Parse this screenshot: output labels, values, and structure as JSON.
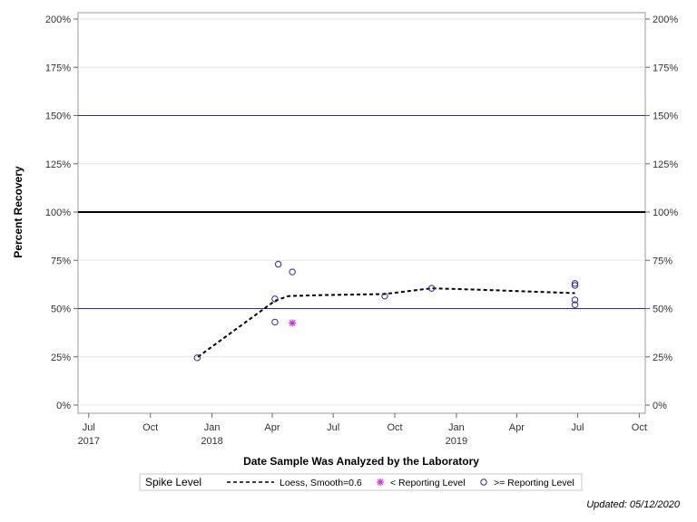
{
  "chart_data": {
    "type": "scatter",
    "xlabel": "Date Sample Was Analyzed by the Laboratory",
    "ylabel": "Percent Recovery",
    "xlim": [
      "2017-06-15",
      "2019-10-10"
    ],
    "ylim": [
      0,
      200
    ],
    "grid": true,
    "y_ticks": [
      0,
      25,
      50,
      75,
      100,
      125,
      150,
      175,
      200
    ],
    "y_tick_labels": [
      "0%",
      "25%",
      "50%",
      "75%",
      "100%",
      "125%",
      "150%",
      "175%",
      "200%"
    ],
    "x_ticks": [
      {
        "date": "2017-07-01",
        "label": "Jul",
        "year": "2017"
      },
      {
        "date": "2017-10-01",
        "label": "Oct",
        "year": ""
      },
      {
        "date": "2018-01-01",
        "label": "Jan",
        "year": "2018"
      },
      {
        "date": "2018-04-01",
        "label": "Apr",
        "year": ""
      },
      {
        "date": "2018-07-01",
        "label": "Jul",
        "year": ""
      },
      {
        "date": "2018-10-01",
        "label": "Oct",
        "year": ""
      },
      {
        "date": "2019-01-01",
        "label": "Jan",
        "year": "2019"
      },
      {
        "date": "2019-04-01",
        "label": "Apr",
        "year": ""
      },
      {
        "date": "2019-07-01",
        "label": "Jul",
        "year": ""
      },
      {
        "date": "2019-10-01",
        "label": "Oct",
        "year": ""
      }
    ],
    "reference_lines": [
      {
        "y": 150,
        "color": "#2a2aa0",
        "style": "thin"
      },
      {
        "y": 100,
        "color": "#000000",
        "style": "thick"
      },
      {
        "y": 50,
        "color": "#2a2aa0",
        "style": "thin"
      }
    ],
    "series": [
      {
        "name": "Loess, Smooth=0.6",
        "kind": "line",
        "color": "#000000",
        "points": [
          {
            "x": "2017-12-11",
            "y": 25
          },
          {
            "x": "2018-04-05",
            "y": 54
          },
          {
            "x": "2018-04-25",
            "y": 56.5
          },
          {
            "x": "2018-06-15",
            "y": 57
          },
          {
            "x": "2018-09-15",
            "y": 57.5
          },
          {
            "x": "2018-11-25",
            "y": 60.5
          },
          {
            "x": "2019-03-01",
            "y": 59.5
          },
          {
            "x": "2019-06-27",
            "y": 58
          }
        ]
      },
      {
        "name": "< Reporting Level",
        "kind": "star",
        "color": "#e020e0",
        "points": [
          {
            "x": "2018-05-01",
            "y": 42.5
          }
        ]
      },
      {
        "name": ">= Reporting Level",
        "kind": "circle",
        "color": "#2a2aa0",
        "points": [
          {
            "x": "2017-12-10",
            "y": 24.5
          },
          {
            "x": "2018-04-05",
            "y": 55
          },
          {
            "x": "2018-04-05",
            "y": 43
          },
          {
            "x": "2018-04-10",
            "y": 73
          },
          {
            "x": "2018-05-01",
            "y": 69
          },
          {
            "x": "2018-09-16",
            "y": 56.5
          },
          {
            "x": "2018-11-25",
            "y": 60.5
          },
          {
            "x": "2019-06-27",
            "y": 63
          },
          {
            "x": "2019-06-27",
            "y": 62
          },
          {
            "x": "2019-06-27",
            "y": 54.5
          },
          {
            "x": "2019-06-27",
            "y": 52
          }
        ]
      }
    ]
  },
  "legend": {
    "title": "Spike Level",
    "placement": "bottom"
  },
  "footer": {
    "updated": "Updated: 05/12/2020"
  },
  "colors": {
    "marker_blue": "#2a2aa0",
    "marker_magenta": "#e020e0",
    "grid": "#e6e6e6"
  }
}
